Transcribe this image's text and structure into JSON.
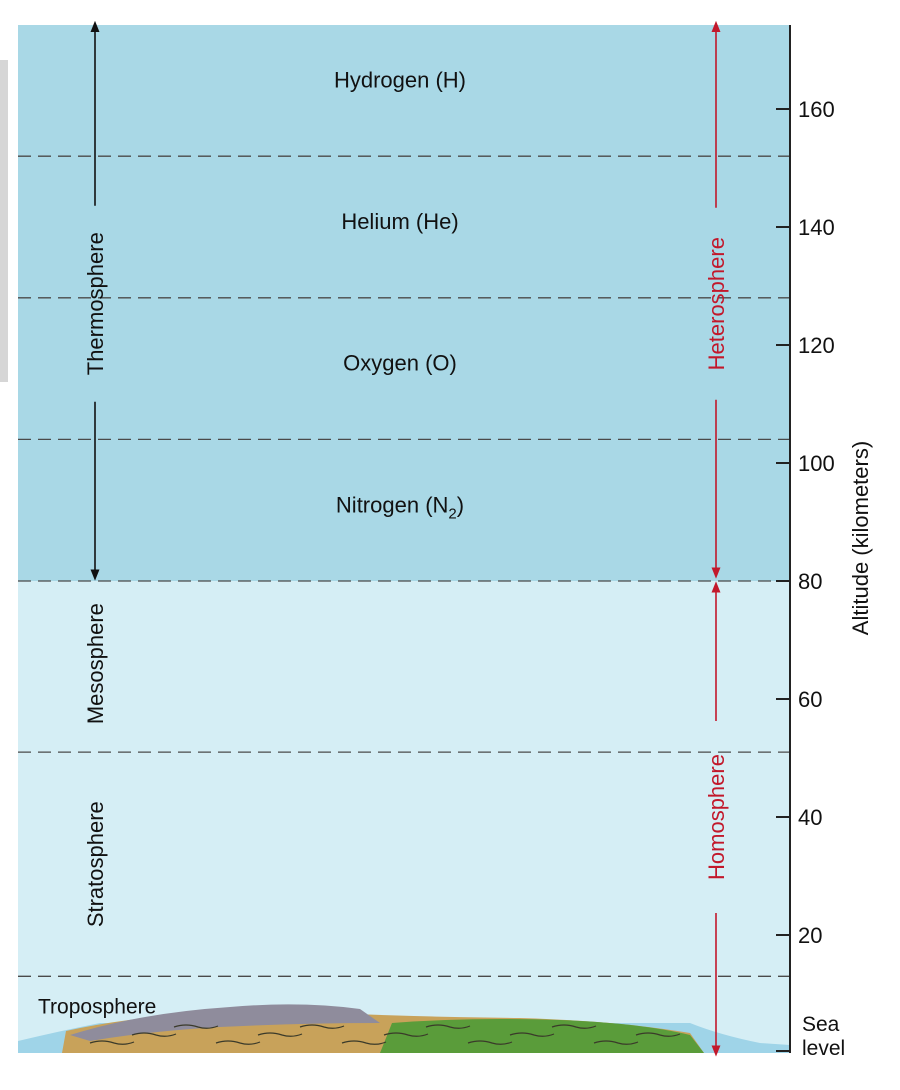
{
  "colors": {
    "heterosphere_bg": "#a9d8e6",
    "homosphere_bg": "#d5eef5",
    "arrow_black": "#111111",
    "arrow_red": "#c2182b",
    "dashed_line": "#4a4a4a",
    "ground_green": "#5a9c3a",
    "ground_brown": "#c8a25a",
    "ground_gray": "#8f8c9c"
  },
  "scale": {
    "axis_title": "Altitude (kilometers)",
    "sea_level_label": [
      "Sea",
      "level"
    ],
    "ticks": [
      20,
      40,
      60,
      80,
      100,
      120,
      140,
      160
    ],
    "range_km": [
      0,
      175
    ]
  },
  "gas_layers": [
    {
      "label": "Hydrogen (H)",
      "km": 165
    },
    {
      "label": "Helium (He)",
      "km": 141
    },
    {
      "label": "Oxygen (O)",
      "km": 117
    },
    {
      "label": "Nitrogen (N",
      "subscript": "2",
      "suffix": ")",
      "km": 93
    }
  ],
  "boundaries_km": [
    152,
    128,
    104,
    80,
    51,
    13
  ],
  "atmosphere_layers": [
    {
      "label": "Thermosphere",
      "km": 127,
      "arrow_top_km": 174,
      "arrow_bottom_km": 81
    },
    {
      "label": "Mesosphere",
      "km": 66
    },
    {
      "label": "Stratosphere",
      "km": 32
    },
    {
      "label": "Troposphere",
      "km": 5
    }
  ],
  "sphere_labels": [
    {
      "label": "Heterosphere",
      "km": 127,
      "top_km": 174,
      "bottom_km": 81
    },
    {
      "label": "Homosphere",
      "km": 40,
      "top_km": 79,
      "bottom_km": 0
    }
  ]
}
